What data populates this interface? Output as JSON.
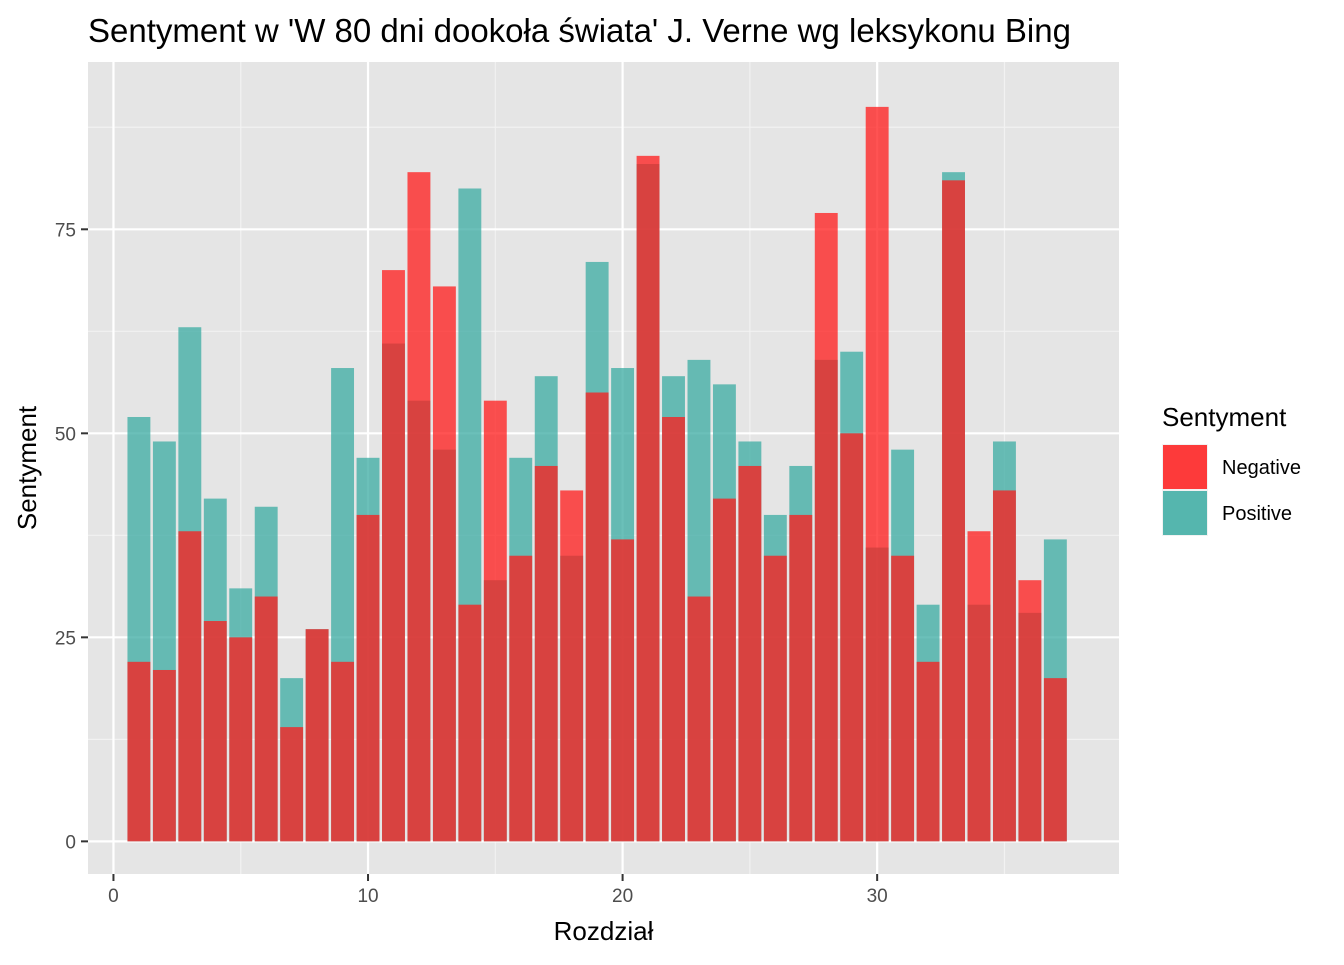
{
  "chart_data": {
    "type": "bar",
    "title": "Sentyment w 'W 80 dni dookoła świata' J. Verne wg leksykonu Bing",
    "xlabel": "Rozdział",
    "ylabel": "Sentyment",
    "xlim": [
      -1,
      39.5
    ],
    "ylim": [
      -4,
      95.5
    ],
    "x_ticks": [
      0,
      10,
      20,
      30
    ],
    "y_ticks": [
      0,
      25,
      50,
      75
    ],
    "grid": true,
    "legend": {
      "title": "Sentyment",
      "position": "right",
      "entries": [
        "Negative",
        "Positive"
      ]
    },
    "x": [
      1,
      2,
      3,
      4,
      5,
      6,
      7,
      8,
      9,
      10,
      11,
      12,
      13,
      14,
      15,
      16,
      17,
      18,
      19,
      20,
      21,
      22,
      23,
      24,
      25,
      26,
      27,
      28,
      29,
      30,
      31,
      32,
      33,
      34,
      35,
      36,
      37
    ],
    "series": [
      {
        "name": "Negative",
        "color": "#ff1a1a",
        "values": [
          22,
          21,
          38,
          27,
          25,
          30,
          14,
          26,
          22,
          40,
          70,
          82,
          68,
          29,
          54,
          35,
          46,
          43,
          55,
          37,
          84,
          52,
          30,
          42,
          46,
          35,
          40,
          77,
          50,
          90,
          35,
          22,
          81,
          38,
          43,
          32,
          20
        ]
      },
      {
        "name": "Positive",
        "color": "#3aaba2",
        "values": [
          52,
          49,
          63,
          42,
          31,
          41,
          20,
          26,
          58,
          47,
          61,
          54,
          48,
          80,
          32,
          47,
          57,
          35,
          71,
          58,
          83,
          57,
          59,
          56,
          49,
          40,
          46,
          59,
          60,
          36,
          48,
          29,
          82,
          29,
          49,
          28,
          37
        ]
      }
    ]
  }
}
